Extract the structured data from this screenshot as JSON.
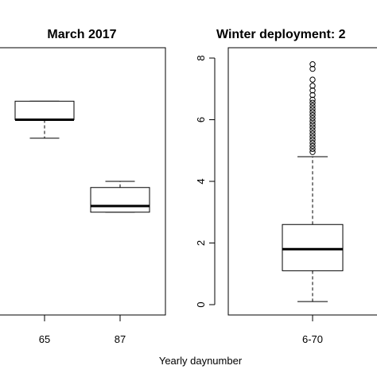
{
  "chart_data": [
    {
      "type": "box",
      "title": "March 2017",
      "categories": [
        "65",
        "87"
      ],
      "boxes": [
        {
          "category": "65",
          "whisker_low": 5.4,
          "q1": 6.0,
          "median": 6.0,
          "q3": 6.6,
          "whisker_high": 6.6,
          "outliers": []
        },
        {
          "category": "87",
          "whisker_low": 3.0,
          "q1": 3.0,
          "median": 3.2,
          "q3": 3.8,
          "whisker_high": 4.0,
          "outliers": []
        }
      ],
      "ylim": [
        0,
        8.5
      ]
    },
    {
      "type": "box",
      "title": "Winter deployment: 2",
      "categories": [
        "6-70"
      ],
      "yticks": [
        "0",
        "2",
        "4",
        "6",
        "8"
      ],
      "boxes": [
        {
          "category": "6-70",
          "whisker_low": 0.1,
          "q1": 1.1,
          "median": 1.8,
          "q3": 2.6,
          "whisker_high": 4.8,
          "outliers": [
            4.95,
            5.05,
            5.15,
            5.25,
            5.35,
            5.45,
            5.55,
            5.65,
            5.75,
            5.85,
            5.95,
            6.05,
            6.15,
            6.25,
            6.35,
            6.45,
            6.55,
            6.65,
            6.8,
            6.95,
            7.1,
            7.3,
            7.65,
            7.8
          ]
        }
      ],
      "ylim": [
        0,
        8.5
      ]
    }
  ],
  "xlabel": "Yearly daynumber"
}
